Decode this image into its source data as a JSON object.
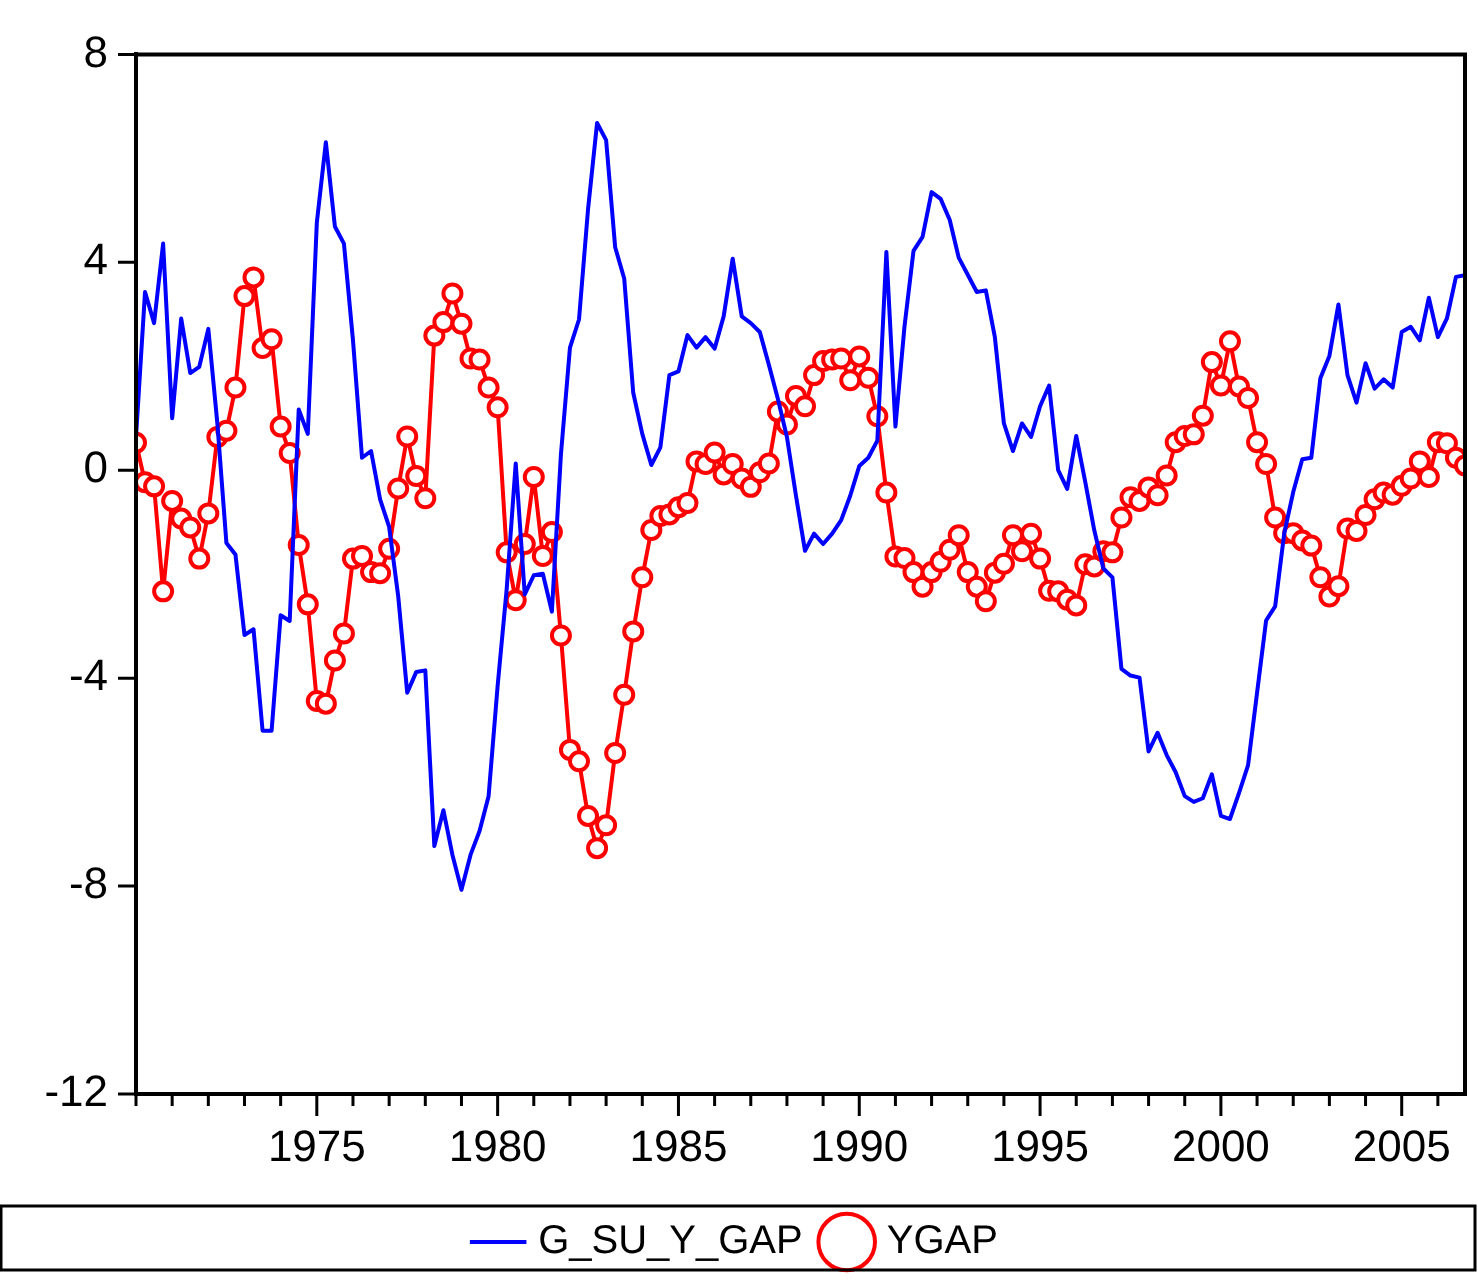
{
  "chart_data": {
    "type": "line",
    "legend": "bottom",
    "grid": false,
    "x": [
      1970,
      1970.25,
      1970.5,
      1970.75,
      1971,
      1971.25,
      1971.5,
      1971.75,
      1972,
      1972.25,
      1972.5,
      1972.75,
      1973,
      1973.25,
      1973.5,
      1973.75,
      1974,
      1974.25,
      1974.5,
      1974.75,
      1975,
      1975.25,
      1975.5,
      1975.75,
      1976,
      1976.25,
      1976.5,
      1976.75,
      1977,
      1977.25,
      1977.5,
      1977.75,
      1978,
      1978.25,
      1978.5,
      1978.75,
      1979,
      1979.25,
      1979.5,
      1979.75,
      1980,
      1980.25,
      1980.5,
      1980.75,
      1981,
      1981.25,
      1981.5,
      1981.75,
      1982,
      1982.25,
      1982.5,
      1982.75,
      1983,
      1983.25,
      1983.5,
      1983.75,
      1984,
      1984.25,
      1984.5,
      1984.75,
      1985,
      1985.25,
      1985.5,
      1985.75,
      1986,
      1986.25,
      1986.5,
      1986.75,
      1987,
      1987.25,
      1987.5,
      1987.75,
      1988,
      1988.25,
      1988.5,
      1988.75,
      1989,
      1989.25,
      1989.5,
      1989.75,
      1990,
      1990.25,
      1990.5,
      1990.75,
      1991,
      1991.25,
      1991.5,
      1991.75,
      1992,
      1992.25,
      1992.5,
      1992.75,
      1993,
      1993.25,
      1993.5,
      1993.75,
      1994,
      1994.25,
      1994.5,
      1994.75,
      1995,
      1995.25,
      1995.5,
      1995.75,
      1996,
      1996.25,
      1996.5,
      1996.75,
      1997,
      1997.25,
      1997.5,
      1997.75,
      1998,
      1998.25,
      1998.5,
      1998.75,
      1999,
      1999.25,
      1999.5,
      1999.75,
      2000,
      2000.25,
      2000.5,
      2000.75,
      2001,
      2001.25,
      2001.5,
      2001.75,
      2002,
      2002.25,
      2002.5,
      2002.75,
      2003,
      2003.25,
      2003.5,
      2003.75,
      2004,
      2004.25,
      2004.5,
      2004.75,
      2005,
      2005.25,
      2005.5,
      2005.75,
      2006,
      2006.25,
      2006.5,
      2006.75
    ],
    "xlim": [
      1970,
      2006.75
    ],
    "xticks": [
      {
        "value": 1970,
        "label": null
      },
      {
        "value": 1971,
        "label": null
      },
      {
        "value": 1972,
        "label": null
      },
      {
        "value": 1973,
        "label": null
      },
      {
        "value": 1974,
        "label": null
      },
      1975,
      {
        "value": 1976,
        "label": null
      },
      {
        "value": 1977,
        "label": null
      },
      {
        "value": 1978,
        "label": null
      },
      {
        "value": 1979,
        "label": null
      },
      1980,
      {
        "value": 1981,
        "label": null
      },
      {
        "value": 1982,
        "label": null
      },
      {
        "value": 1983,
        "label": null
      },
      {
        "value": 1984,
        "label": null
      },
      1985,
      {
        "value": 1986,
        "label": null
      },
      {
        "value": 1987,
        "label": null
      },
      {
        "value": 1988,
        "label": null
      },
      {
        "value": 1989,
        "label": null
      },
      1990,
      {
        "value": 1991,
        "label": null
      },
      {
        "value": 1992,
        "label": null
      },
      {
        "value": 1993,
        "label": null
      },
      {
        "value": 1994,
        "label": null
      },
      1995,
      {
        "value": 1996,
        "label": null
      },
      {
        "value": 1997,
        "label": null
      },
      {
        "value": 1998,
        "label": null
      },
      {
        "value": 1999,
        "label": null
      },
      2000,
      {
        "value": 2001,
        "label": null
      },
      {
        "value": 2002,
        "label": null
      },
      {
        "value": 2003,
        "label": null
      },
      {
        "value": 2004,
        "label": null
      },
      2005,
      {
        "value": 2006,
        "label": null
      }
    ],
    "ylim": [
      -12,
      8
    ],
    "yticks": [
      -12,
      -8,
      -4,
      0,
      4,
      8
    ],
    "series": [
      {
        "name": "G_SU_Y_GAP",
        "color": "#0000ff",
        "marker": "none",
        "values": [
          0.64,
          3.43,
          2.83,
          4.36,
          1.0,
          2.92,
          1.87,
          1.99,
          2.72,
          0.9,
          -1.4,
          -1.62,
          -3.17,
          -3.06,
          -5.01,
          -5.01,
          -2.79,
          -2.9,
          1.17,
          0.7,
          4.76,
          6.31,
          4.69,
          4.36,
          2.5,
          0.24,
          0.37,
          -0.56,
          -1.09,
          -2.42,
          -4.28,
          -3.88,
          -3.85,
          -7.23,
          -6.54,
          -7.4,
          -8.07,
          -7.4,
          -6.94,
          -6.27,
          -4.15,
          -2.29,
          0.13,
          -2.39,
          -2.02,
          -1.99,
          -2.72,
          0.3,
          2.36,
          2.9,
          5.02,
          6.68,
          6.35,
          4.29,
          3.69,
          1.49,
          0.7,
          0.1,
          0.44,
          1.83,
          1.9,
          2.6,
          2.36,
          2.56,
          2.34,
          2.96,
          4.07,
          2.96,
          2.83,
          2.66,
          2.03,
          1.37,
          0.64,
          -0.49,
          -1.55,
          -1.22,
          -1.42,
          -1.22,
          -0.96,
          -0.49,
          0.08,
          0.24,
          0.57,
          4.2,
          0.84,
          2.76,
          4.22,
          4.49,
          5.35,
          5.22,
          4.82,
          4.09,
          3.76,
          3.43,
          3.46,
          2.56,
          0.9,
          0.37,
          0.9,
          0.64,
          1.23,
          1.63,
          0.0,
          -0.36,
          0.66,
          -0.23,
          -1.16,
          -1.89,
          -2.06,
          -3.82,
          -3.95,
          -3.99,
          -5.41,
          -5.05,
          -5.48,
          -5.81,
          -6.27,
          -6.38,
          -6.31,
          -5.85,
          -6.65,
          -6.71,
          -6.21,
          -5.68,
          -4.28,
          -2.89,
          -2.62,
          -1.22,
          -0.42,
          0.21,
          0.24,
          1.77,
          2.2,
          3.19,
          1.83,
          1.3,
          2.06,
          1.57,
          1.75,
          1.59,
          2.66,
          2.76,
          2.5,
          3.32,
          2.56,
          2.92,
          3.72,
          3.75
        ]
      },
      {
        "name": "YGAP",
        "color": "#ff0000",
        "marker": "circle",
        "values": [
          0.53,
          -0.23,
          -0.31,
          -2.33,
          -0.59,
          -0.93,
          -1.1,
          -1.7,
          -0.83,
          0.64,
          0.76,
          1.59,
          3.35,
          3.71,
          2.35,
          2.52,
          0.84,
          0.33,
          -1.44,
          -2.58,
          -4.44,
          -4.49,
          -3.66,
          -3.14,
          -1.7,
          -1.65,
          -1.96,
          -1.98,
          -1.51,
          -0.35,
          0.65,
          -0.11,
          -0.54,
          2.59,
          2.85,
          3.4,
          2.82,
          2.15,
          2.13,
          1.59,
          1.21,
          -1.58,
          -2.5,
          -1.42,
          -0.13,
          -1.65,
          -1.19,
          -3.18,
          -5.38,
          -5.6,
          -6.65,
          -7.27,
          -6.83,
          -5.44,
          -4.32,
          -3.1,
          -2.06,
          -1.15,
          -0.88,
          -0.85,
          -0.71,
          -0.63,
          0.17,
          0.12,
          0.34,
          -0.08,
          0.12,
          -0.16,
          -0.32,
          -0.04,
          0.13,
          1.13,
          0.88,
          1.43,
          1.23,
          1.83,
          2.1,
          2.13,
          2.15,
          1.73,
          2.19,
          1.78,
          1.04,
          -0.43,
          -1.66,
          -1.69,
          -1.96,
          -2.24,
          -1.96,
          -1.76,
          -1.53,
          -1.25,
          -1.96,
          -2.24,
          -2.52,
          -1.97,
          -1.8,
          -1.25,
          -1.56,
          -1.22,
          -1.7,
          -2.32,
          -2.33,
          -2.49,
          -2.6,
          -1.81,
          -1.85,
          -1.56,
          -1.58,
          -0.91,
          -0.52,
          -0.59,
          -0.33,
          -0.48,
          -0.1,
          0.54,
          0.66,
          0.69,
          1.05,
          2.08,
          1.63,
          2.48,
          1.61,
          1.39,
          0.54,
          0.12,
          -0.91,
          -1.21,
          -1.21,
          -1.35,
          -1.45,
          -2.06,
          -2.43,
          -2.23,
          -1.12,
          -1.17,
          -0.86,
          -0.56,
          -0.43,
          -0.47,
          -0.3,
          -0.16,
          0.17,
          -0.13,
          0.54,
          0.52,
          0.24,
          0.09
        ]
      }
    ]
  }
}
